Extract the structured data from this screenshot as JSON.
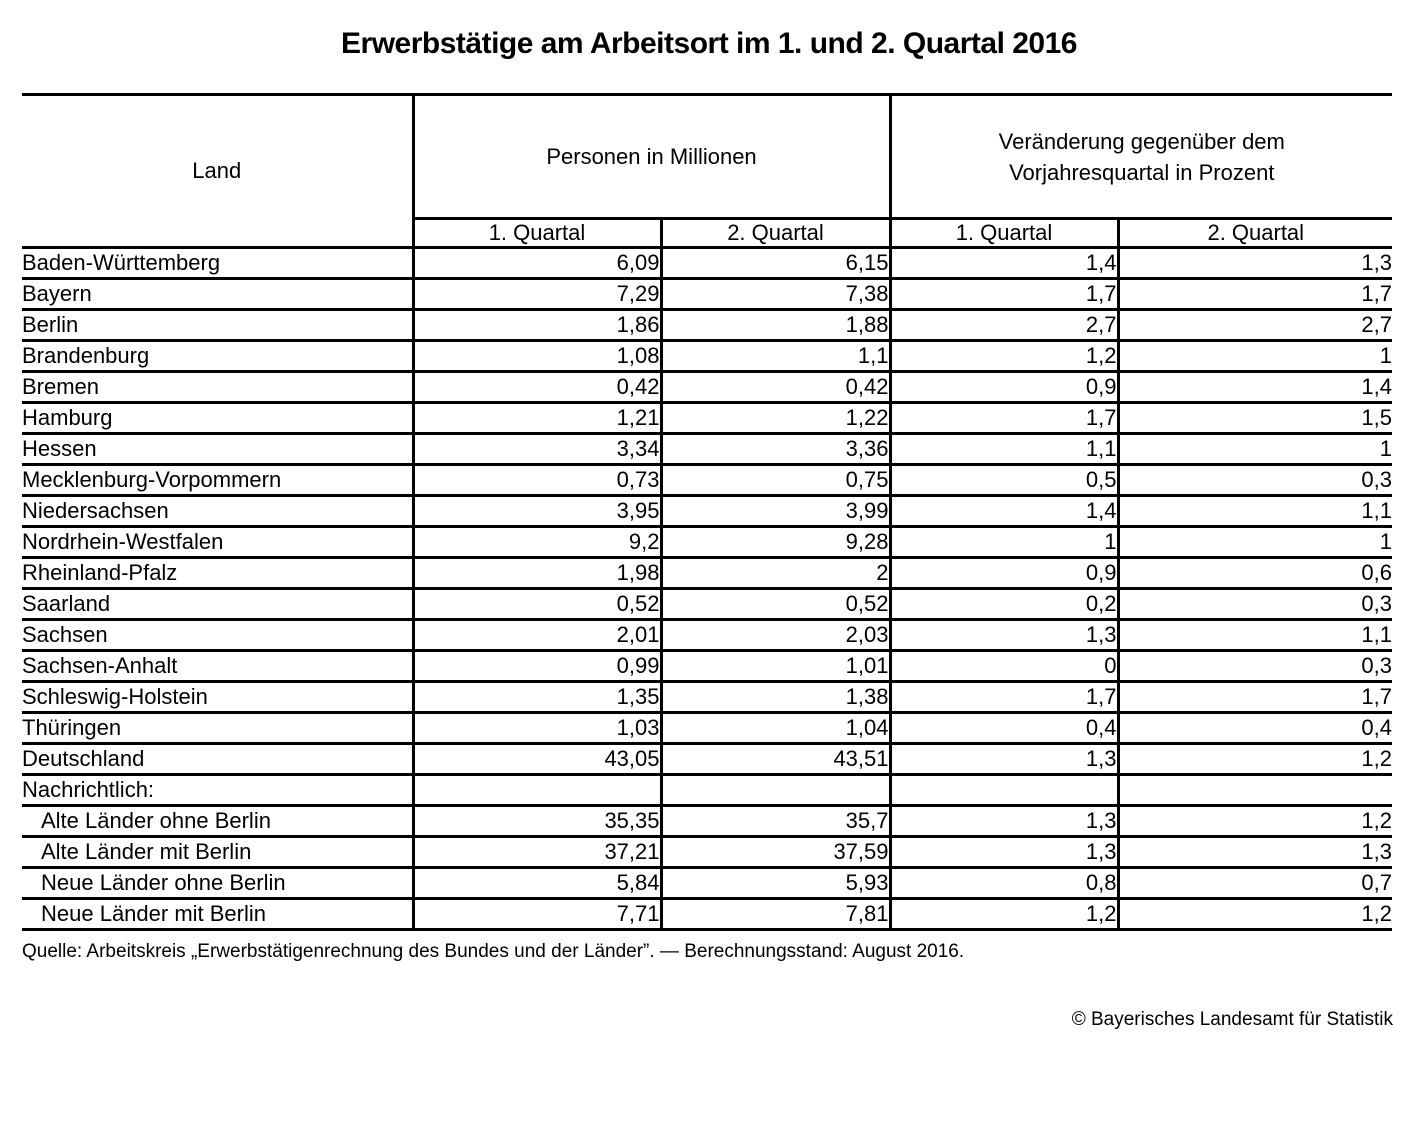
{
  "title": "Erwerbstätige am Arbeitsort im 1. und 2. Quartal 2016",
  "table": {
    "land_header": "Land",
    "group1": "Personen in Millionen",
    "group2_line1": "Veränderung gegenüber dem",
    "group2_line2": "Vorjahresquartal in Prozent",
    "subheaders": [
      "1. Quartal",
      "2. Quartal",
      "1. Quartal",
      "2. Quartal"
    ],
    "rows": [
      {
        "land": "Baden-Württemberg",
        "indent": false,
        "values": [
          "6,09",
          "6,15",
          "1,4",
          "1,3"
        ]
      },
      {
        "land": "Bayern",
        "indent": false,
        "values": [
          "7,29",
          "7,38",
          "1,7",
          "1,7"
        ]
      },
      {
        "land": "Berlin",
        "indent": false,
        "values": [
          "1,86",
          "1,88",
          "2,7",
          "2,7"
        ]
      },
      {
        "land": "Brandenburg",
        "indent": false,
        "values": [
          "1,08",
          "1,1",
          "1,2",
          "1"
        ]
      },
      {
        "land": "Bremen",
        "indent": false,
        "values": [
          "0,42",
          "0,42",
          "0,9",
          "1,4"
        ]
      },
      {
        "land": "Hamburg",
        "indent": false,
        "values": [
          "1,21",
          "1,22",
          "1,7",
          "1,5"
        ]
      },
      {
        "land": "Hessen",
        "indent": false,
        "values": [
          "3,34",
          "3,36",
          "1,1",
          "1"
        ]
      },
      {
        "land": "Mecklenburg-Vorpommern",
        "indent": false,
        "values": [
          "0,73",
          "0,75",
          "0,5",
          "0,3"
        ]
      },
      {
        "land": "Niedersachsen",
        "indent": false,
        "values": [
          "3,95",
          "3,99",
          "1,4",
          "1,1"
        ]
      },
      {
        "land": "Nordrhein-Westfalen",
        "indent": false,
        "values": [
          "9,2",
          "9,28",
          "1",
          "1"
        ]
      },
      {
        "land": "Rheinland-Pfalz",
        "indent": false,
        "values": [
          "1,98",
          "2",
          "0,9",
          "0,6"
        ]
      },
      {
        "land": "Saarland",
        "indent": false,
        "values": [
          "0,52",
          "0,52",
          "0,2",
          "0,3"
        ]
      },
      {
        "land": "Sachsen",
        "indent": false,
        "values": [
          "2,01",
          "2,03",
          "1,3",
          "1,1"
        ]
      },
      {
        "land": "Sachsen-Anhalt",
        "indent": false,
        "values": [
          "0,99",
          "1,01",
          "0",
          "0,3"
        ]
      },
      {
        "land": "Schleswig-Holstein",
        "indent": false,
        "values": [
          "1,35",
          "1,38",
          "1,7",
          "1,7"
        ]
      },
      {
        "land": "Thüringen",
        "indent": false,
        "values": [
          "1,03",
          "1,04",
          "0,4",
          "0,4"
        ]
      },
      {
        "land": "Deutschland",
        "indent": false,
        "values": [
          "43,05",
          "43,51",
          "1,3",
          "1,2"
        ]
      },
      {
        "land": "Nachrichtlich:",
        "indent": false,
        "values": [
          "",
          "",
          "",
          ""
        ]
      },
      {
        "land": "Alte Länder ohne Berlin",
        "indent": true,
        "values": [
          "35,35",
          "35,7",
          "1,3",
          "1,2"
        ]
      },
      {
        "land": "Alte Länder mit Berlin",
        "indent": true,
        "values": [
          "37,21",
          "37,59",
          "1,3",
          "1,3"
        ]
      },
      {
        "land": "Neue Länder ohne Berlin",
        "indent": true,
        "values": [
          "5,84",
          "5,93",
          "0,8",
          "0,7"
        ]
      },
      {
        "land": "Neue Länder mit Berlin",
        "indent": true,
        "values": [
          "7,71",
          "7,81",
          "1,2",
          "1,2"
        ]
      }
    ]
  },
  "footer": {
    "source": "Quelle: Arbeitskreis „Erwerbstätigenrechnung des Bundes und der Länder”.  — Berechnungsstand: August 2016.",
    "copyright": "© Bayerisches Landesamt für Statistik"
  }
}
